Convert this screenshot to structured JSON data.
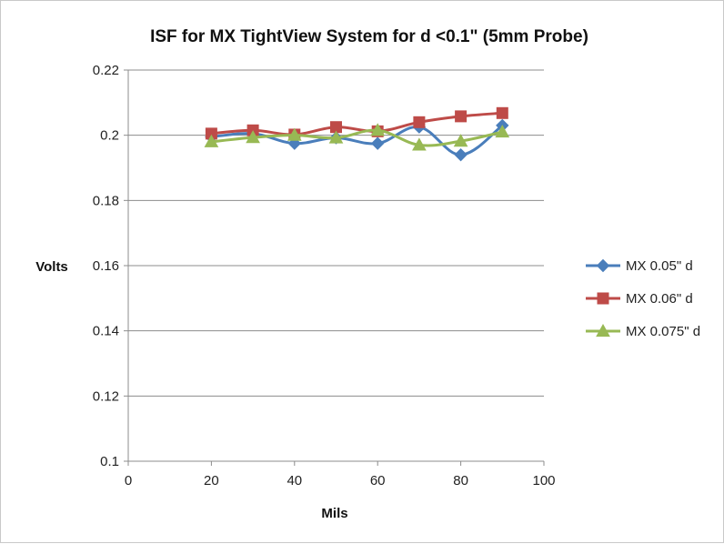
{
  "chart_data": {
    "type": "line",
    "title": "ISF for MX TightView System for d <0.1\" (5mm Probe)",
    "xlabel": "Mils",
    "ylabel": "Volts",
    "xlim": [
      0,
      100
    ],
    "ylim": [
      0.1,
      0.22
    ],
    "x_ticks": [
      "0",
      "20",
      "40",
      "60",
      "80",
      "100"
    ],
    "y_ticks": [
      "0.1",
      "0.12",
      "0.14",
      "0.16",
      "0.18",
      "0.2",
      "0.22"
    ],
    "grid": "horizontal",
    "legend_position": "right",
    "x": [
      20,
      30,
      40,
      50,
      60,
      70,
      80,
      90
    ],
    "series": [
      {
        "name": "MX 0.05\" d",
        "color": "#4a7ebb",
        "marker": "diamond",
        "values": [
          0.1995,
          0.2005,
          0.1975,
          0.1992,
          0.1975,
          0.2025,
          0.194,
          0.203
        ]
      },
      {
        "name": "MX 0.06\" d",
        "color": "#be4b48",
        "marker": "square",
        "values": [
          0.2005,
          0.2015,
          0.2002,
          0.2025,
          0.2012,
          0.204,
          0.2058,
          0.2068
        ]
      },
      {
        "name": "MX 0.075\" d",
        "color": "#98b954",
        "marker": "triangle",
        "values": [
          0.198,
          0.1993,
          0.2,
          0.1992,
          0.2015,
          0.197,
          0.1982,
          0.201
        ]
      }
    ]
  }
}
